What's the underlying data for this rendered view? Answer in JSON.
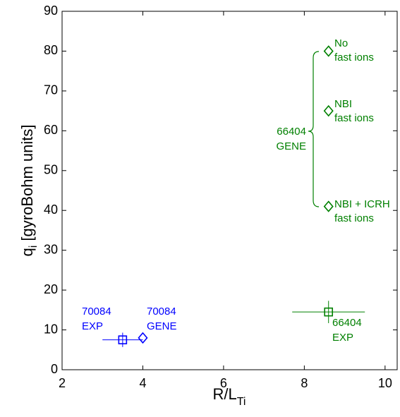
{
  "chart_data": {
    "type": "scatter",
    "xlabel": [
      "R/L",
      "Ti"
    ],
    "ylabel": [
      "q",
      "i",
      " [gyroBohm units]"
    ],
    "xlim": [
      2,
      10.3
    ],
    "xticks": [
      2,
      4,
      6,
      8,
      10
    ],
    "ylim": [
      0,
      90
    ],
    "yticks": [
      0,
      10,
      20,
      30,
      40,
      50,
      60,
      70,
      80,
      90
    ],
    "grid": false,
    "series": [
      {
        "color": "#008000",
        "marker": "diamond",
        "x": [
          8.6,
          8.6,
          8.6
        ],
        "values": [
          80,
          65,
          41
        ]
      },
      {
        "color": "#008000",
        "marker": "square",
        "x": [
          8.6
        ],
        "values": [
          14.5
        ],
        "xerr": [
          0.9
        ],
        "yerr": [
          2.8
        ]
      },
      {
        "color": "#0000ff",
        "marker": "square",
        "x": [
          3.5
        ],
        "values": [
          7.5
        ],
        "xerr": [
          0.5
        ],
        "yerr": [
          1.8
        ]
      },
      {
        "color": "#0000ff",
        "marker": "diamond",
        "x": [
          4.0
        ],
        "values": [
          8
        ]
      }
    ],
    "annotations": [
      {
        "lines": [
          "No",
          "fast ions"
        ],
        "color": "#008000"
      },
      {
        "lines": [
          "NBI",
          "fast ions"
        ],
        "color": "#008000"
      },
      {
        "lines": [
          "NBI + ICRH",
          "fast ions"
        ],
        "color": "#008000"
      },
      {
        "lines": [
          "66404",
          "GENE"
        ],
        "color": "#008000"
      },
      {
        "lines": [
          "66404",
          "EXP"
        ],
        "color": "#008000"
      },
      {
        "lines": [
          "70084",
          "EXP"
        ],
        "color": "#0000ff"
      },
      {
        "lines": [
          "70084",
          "GENE"
        ],
        "color": "#0000ff"
      }
    ]
  }
}
